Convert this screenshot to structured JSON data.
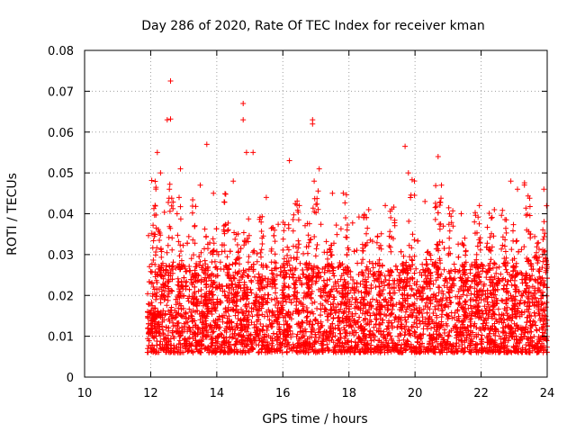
{
  "chart_data": {
    "type": "scatter",
    "title": "Day 286 of 2020, Rate Of TEC Index for receiver kman",
    "xlabel": "GPS time / hours",
    "ylabel": "ROTI / TECUs",
    "xlim": [
      10,
      24
    ],
    "ylim": [
      0,
      0.08
    ],
    "xticks": [
      10,
      12,
      14,
      16,
      18,
      20,
      22,
      24
    ],
    "yticks": [
      0,
      0.01,
      0.02,
      0.03,
      0.04,
      0.05,
      0.06,
      0.07,
      0.08
    ],
    "xtick_labels": [
      "10",
      "12",
      "14",
      "16",
      "18",
      "20",
      "22",
      "24"
    ],
    "ytick_labels": [
      "0",
      "0.01",
      "0.02",
      "0.03",
      "0.04",
      "0.05",
      "0.06",
      "0.07",
      "0.08"
    ],
    "grid": true,
    "marker": "+",
    "marker_color": "#ff0000",
    "series": [
      {
        "name": "ROTI",
        "description_values": "dense scatter, hours 11.9-24, mostly 0.005-0.03",
        "x": [
          12.6,
          12.5,
          12.6,
          14.8,
          14.8,
          16.9,
          16.9,
          13.7,
          19.7,
          20.7,
          16.2,
          15.1,
          12.2,
          12.9,
          13.5,
          13.9,
          14.5,
          14.9,
          15.5,
          16.5,
          17.1,
          17.5,
          17.9,
          18.6,
          19.1,
          19.8,
          20.3,
          20.8,
          21.4,
          21.8,
          22.4,
          22.9,
          23.1,
          23.5,
          23.9,
          12.1,
          12.3,
          12.8
        ],
        "y": [
          0.0725,
          0.063,
          0.0632,
          0.067,
          0.063,
          0.063,
          0.062,
          0.057,
          0.0565,
          0.054,
          0.053,
          0.055,
          0.055,
          0.051,
          0.047,
          0.045,
          0.048,
          0.055,
          0.044,
          0.042,
          0.051,
          0.045,
          0.039,
          0.041,
          0.042,
          0.05,
          0.043,
          0.047,
          0.04,
          0.038,
          0.041,
          0.048,
          0.046,
          0.035,
          0.046,
          0.035,
          0.05,
          0.04
        ]
      }
    ]
  }
}
